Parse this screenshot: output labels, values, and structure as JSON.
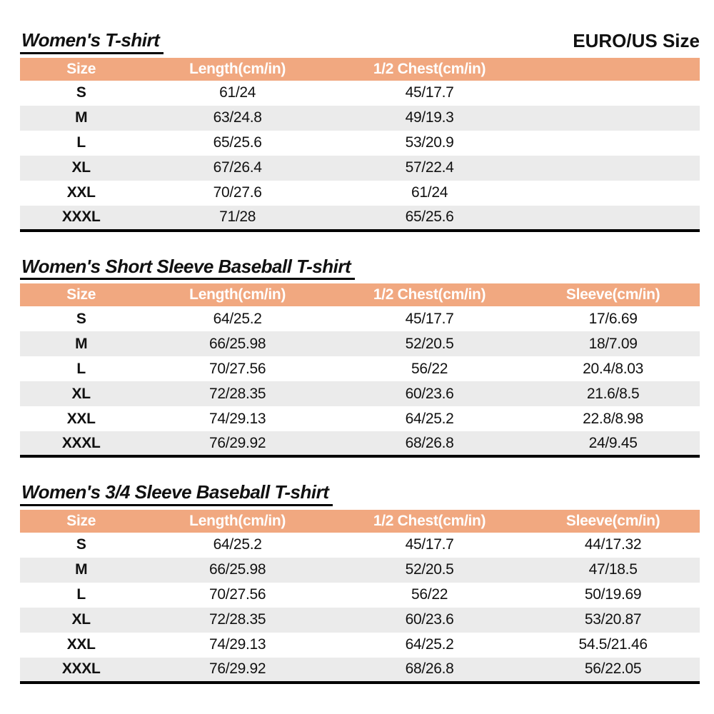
{
  "page": {
    "standard_label": "EURO/US Size"
  },
  "colors": {
    "header_bg": "#F1A880",
    "header_text": "#FFFFFF",
    "row_alt_bg": "#EBEBEB",
    "rule_color": "#000000"
  },
  "tables": [
    {
      "title": "Women's T-shirt",
      "columns": [
        "Size",
        "Length(cm/in)",
        "1/2 Chest(cm/in)",
        ""
      ],
      "rows": [
        [
          "S",
          "61/24",
          "45/17.7",
          ""
        ],
        [
          "M",
          "63/24.8",
          "49/19.3",
          ""
        ],
        [
          "L",
          "65/25.6",
          "53/20.9",
          ""
        ],
        [
          "XL",
          "67/26.4",
          "57/22.4",
          ""
        ],
        [
          "XXL",
          "70/27.6",
          "61/24",
          ""
        ],
        [
          "XXXL",
          "71/28",
          "65/25.6",
          ""
        ]
      ]
    },
    {
      "title": "Women's Short Sleeve Baseball T-shirt",
      "columns": [
        "Size",
        "Length(cm/in)",
        "1/2 Chest(cm/in)",
        "Sleeve(cm/in)"
      ],
      "rows": [
        [
          "S",
          "64/25.2",
          "45/17.7",
          "17/6.69"
        ],
        [
          "M",
          "66/25.98",
          "52/20.5",
          "18/7.09"
        ],
        [
          "L",
          "70/27.56",
          "56/22",
          "20.4/8.03"
        ],
        [
          "XL",
          "72/28.35",
          "60/23.6",
          "21.6/8.5"
        ],
        [
          "XXL",
          "74/29.13",
          "64/25.2",
          "22.8/8.98"
        ],
        [
          "XXXL",
          "76/29.92",
          "68/26.8",
          "24/9.45"
        ]
      ]
    },
    {
      "title": "Women's 3/4 Sleeve Baseball T-shirt",
      "columns": [
        "Size",
        "Length(cm/in)",
        "1/2 Chest(cm/in)",
        "Sleeve(cm/in)"
      ],
      "rows": [
        [
          "S",
          "64/25.2",
          "45/17.7",
          "44/17.32"
        ],
        [
          "M",
          "66/25.98",
          "52/20.5",
          "47/18.5"
        ],
        [
          "L",
          "70/27.56",
          "56/22",
          "50/19.69"
        ],
        [
          "XL",
          "72/28.35",
          "60/23.6",
          "53/20.87"
        ],
        [
          "XXL",
          "74/29.13",
          "64/25.2",
          "54.5/21.46"
        ],
        [
          "XXXL",
          "76/29.92",
          "68/26.8",
          "56/22.05"
        ]
      ]
    }
  ]
}
